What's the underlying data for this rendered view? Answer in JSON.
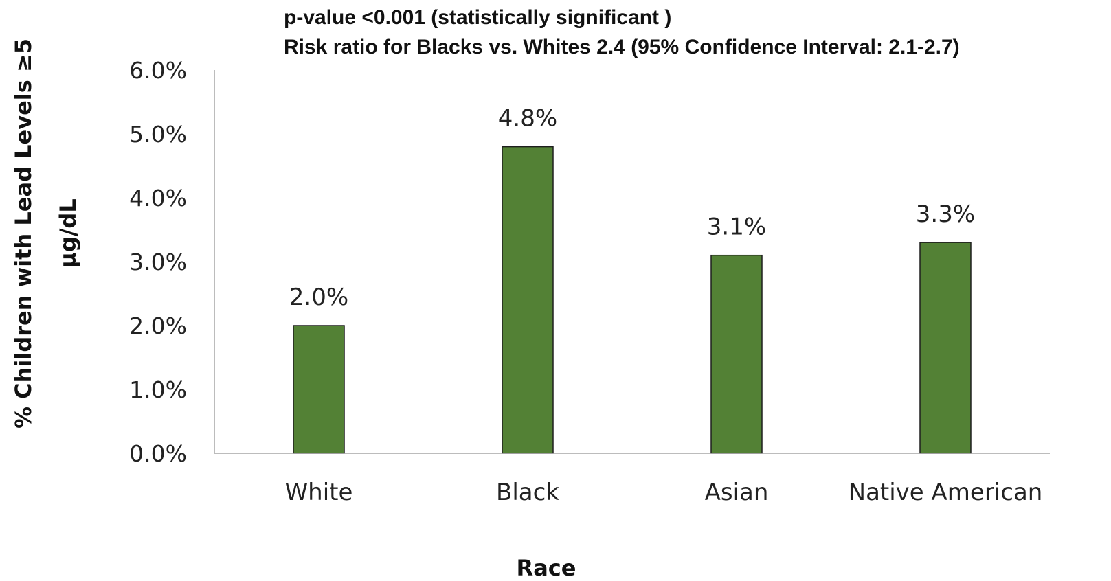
{
  "chart_data": {
    "type": "bar",
    "annotations": [
      "p-value <0.001 (statistically significant )",
      "Risk ratio for Blacks vs. Whites 2.4 (95% Confidence Interval: 2.1-2.7)"
    ],
    "xlabel": "Race",
    "ylabel_lines": [
      "% Children with Lead Levels ≥5",
      "µg/dL"
    ],
    "categories": [
      "White",
      "Black",
      "Asian",
      "Native American"
    ],
    "values": [
      2.0,
      4.8,
      3.1,
      3.3
    ],
    "data_labels": [
      "2.0%",
      "4.8%",
      "3.1%",
      "3.3%"
    ],
    "ylim": [
      0,
      6
    ],
    "yticks": [
      0,
      1,
      2,
      3,
      4,
      5,
      6
    ],
    "ytick_labels": [
      "0.0%",
      "1.0%",
      "2.0%",
      "3.0%",
      "4.0%",
      "5.0%",
      "6.0%"
    ],
    "grid": false,
    "legend": "none",
    "bar_color": "#538135",
    "bar_edge_color": "#1e1e1e",
    "axis_color": "#a6a6a6"
  }
}
